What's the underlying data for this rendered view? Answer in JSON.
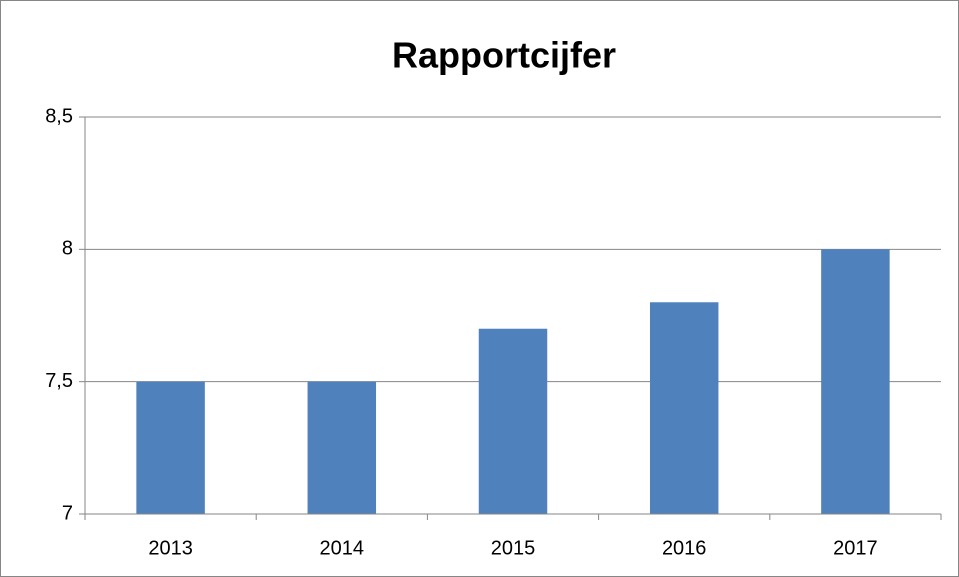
{
  "chart_data": {
    "type": "bar",
    "title": "Rapportcijfer",
    "categories": [
      "2013",
      "2014",
      "2015",
      "2016",
      "2017"
    ],
    "values": [
      7.5,
      7.5,
      7.7,
      7.8,
      8.0
    ],
    "color": "#4f81bd",
    "ylim": [
      7,
      8.5
    ],
    "yticks": [
      7,
      {
        "value": 7.5,
        "label": "7,5"
      },
      8,
      {
        "value": 8.5,
        "label": "8,5"
      }
    ],
    "grid": true
  }
}
